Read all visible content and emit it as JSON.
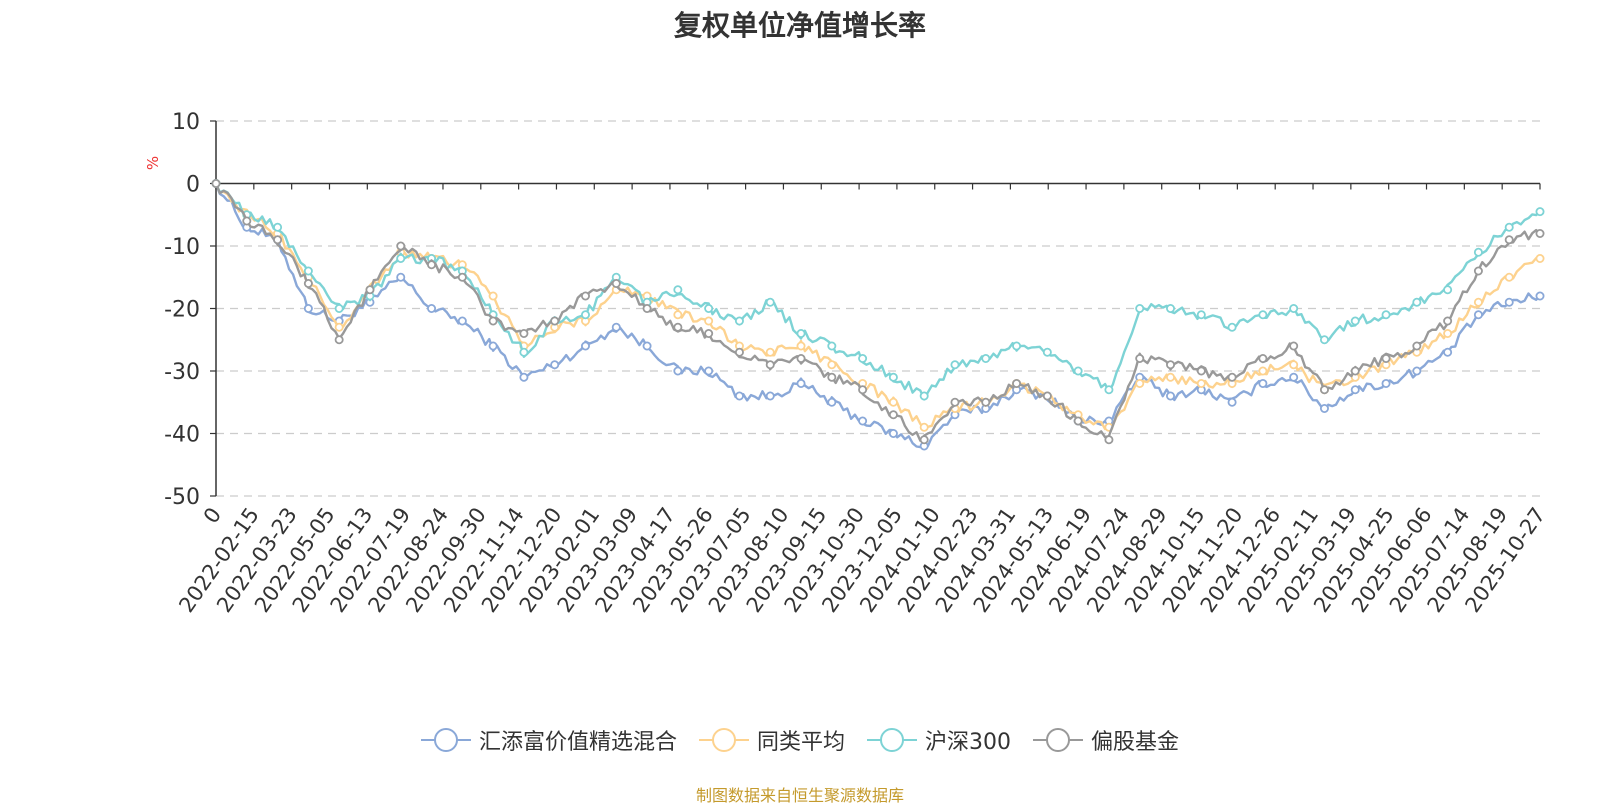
{
  "title": "复权单位净值增长率",
  "source_note": "制图数据来自恒生聚源数据库",
  "chart_data": {
    "type": "line",
    "title": "复权单位净值增长率",
    "ylabel": "%",
    "ylim": [
      -50,
      10
    ],
    "yticks": [
      10,
      0,
      -10,
      -20,
      -30,
      -40,
      -50
    ],
    "grid": true,
    "legend_position": "bottom-center",
    "x_tick_labels": [
      "0",
      "2022-02-15",
      "2022-03-23",
      "2022-05-05",
      "2022-06-13",
      "2022-07-19",
      "2022-08-24",
      "2022-09-30",
      "2022-11-14",
      "2022-12-20",
      "2023-02-01",
      "2023-03-09",
      "2023-04-17",
      "2023-05-26",
      "2023-07-05",
      "2023-08-10",
      "2023-09-15",
      "2023-10-30",
      "2023-12-05",
      "2024-01-10",
      "2024-02-23",
      "2024-03-31",
      "2024-05-13",
      "2024-06-19",
      "2024-07-24",
      "2024-08-29",
      "2024-10-15",
      "2024-11-20",
      "2024-12-26",
      "2025-02-11",
      "2025-03-19",
      "2025-04-25",
      "2025-06-06",
      "2025-07-14",
      "2025-08-19",
      "2025-10-27"
    ],
    "series": [
      {
        "name": "汇添富价值精选混合",
        "color": "#8aa8d8",
        "values": [
          0,
          -7,
          -9,
          -20,
          -22,
          -19,
          -15,
          -20,
          -22,
          -26,
          -31,
          -29,
          -26,
          -23,
          -26,
          -30,
          -30,
          -34,
          -34,
          -32,
          -35,
          -38,
          -40,
          -42,
          -37,
          -36,
          -33,
          -34,
          -38,
          -38,
          -31,
          -34,
          -33,
          -35,
          -32,
          -31,
          -36,
          -33,
          -32,
          -30,
          -27,
          -21,
          -19,
          -18
        ]
      },
      {
        "name": "同类平均",
        "color": "#fdd28e",
        "values": [
          0,
          -5,
          -8,
          -15,
          -23,
          -17,
          -11,
          -12,
          -13,
          -18,
          -26,
          -23,
          -22,
          -17,
          -18,
          -21,
          -22,
          -26,
          -27,
          -26,
          -29,
          -32,
          -35,
          -39,
          -36,
          -35,
          -32,
          -34,
          -37,
          -39,
          -32,
          -31,
          -32,
          -32,
          -30,
          -29,
          -33,
          -31,
          -29,
          -27,
          -24,
          -19,
          -15,
          -12
        ]
      },
      {
        "name": "沪深300",
        "color": "#7dd3d5",
        "values": [
          0,
          -5,
          -7,
          -14,
          -20,
          -18,
          -12,
          -12,
          -14,
          -21,
          -27,
          -22,
          -21,
          -15,
          -19,
          -17,
          -20,
          -22,
          -19,
          -24,
          -26,
          -28,
          -31,
          -34,
          -29,
          -28,
          -26,
          -27,
          -30,
          -33,
          -20,
          -20,
          -21,
          -23,
          -21,
          -20,
          -25,
          -22,
          -21,
          -19,
          -17,
          -11,
          -7,
          -4.5
        ]
      },
      {
        "name": "偏股基金",
        "color": "#999999",
        "values": [
          0,
          -6,
          -9,
          -16,
          -25,
          -17,
          -10,
          -13,
          -15,
          -22,
          -24,
          -22,
          -18,
          -16,
          -20,
          -23,
          -24,
          -27,
          -29,
          -28,
          -31,
          -33,
          -37,
          -41,
          -35,
          -35,
          -32,
          -34,
          -38,
          -41,
          -28,
          -29,
          -30,
          -31,
          -28,
          -26,
          -33,
          -30,
          -28,
          -26,
          -22,
          -14,
          -9,
          -8
        ]
      }
    ]
  }
}
